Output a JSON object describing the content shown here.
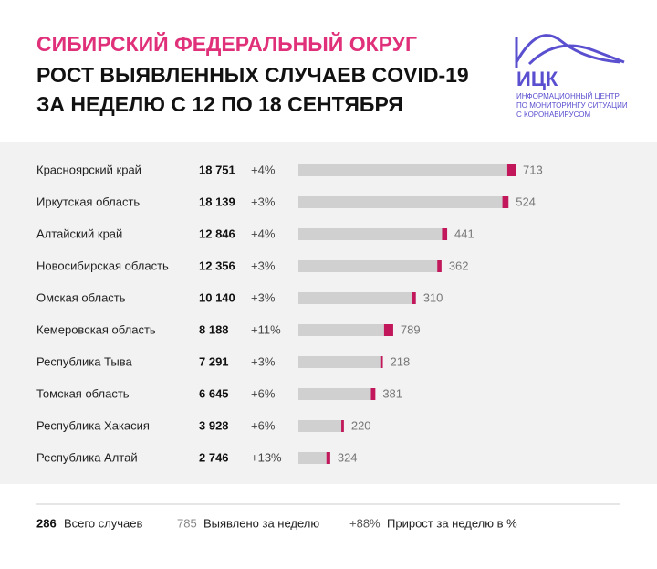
{
  "chart_data": {
    "type": "bar",
    "title": [
      "СИБИРСКИЙ ФЕДЕРАЛЬНЫЙ ОКРУГ",
      "РОСТ ВЫЯВЛЕННЫХ СЛУЧАЕВ COVID-19",
      "ЗА НЕДЕЛЮ С 12 ПО 18 СЕНТЯБРЯ"
    ],
    "logo": {
      "name": "ИЦК",
      "lines": [
        "ИНФОРМАЦИОННЫЙ ЦЕНТР",
        "ПО МОНИТОРИНГУ СИТУАЦИИ",
        "С КОРОНАВИРУСОМ"
      ]
    },
    "categories": [
      "Красноярский край",
      "Иркутская область",
      "Алтайский край",
      "Новосибирская область",
      "Омская область",
      "Кемеровская область",
      "Республика Тыва",
      "Томская область",
      "Республика Хакасия",
      "Республика Алтай"
    ],
    "series": [
      {
        "name": "Всего случаев",
        "color": "#d0d0d0",
        "values": [
          18751,
          18139,
          12846,
          12356,
          10140,
          8188,
          7291,
          6645,
          3928,
          2746
        ],
        "value_labels": [
          "18 751",
          "18 139",
          "12 846",
          "12 356",
          "10 140",
          "8 188",
          "7 291",
          "6 645",
          "3 928",
          "2 746"
        ]
      },
      {
        "name": "Выявлено за неделю",
        "color": "#c2185b",
        "values": [
          713,
          524,
          441,
          362,
          310,
          789,
          218,
          381,
          220,
          324
        ]
      },
      {
        "name": "Прирост за неделю в %",
        "values": [
          4,
          3,
          4,
          3,
          3,
          11,
          3,
          6,
          6,
          13
        ],
        "value_labels": [
          "+4%",
          "+3%",
          "+4%",
          "+3%",
          "+3%",
          "+11%",
          "+3%",
          "+6%",
          "+6%",
          "+13%"
        ]
      }
    ],
    "legend_samples": [
      "286",
      "785",
      "+88%"
    ]
  }
}
